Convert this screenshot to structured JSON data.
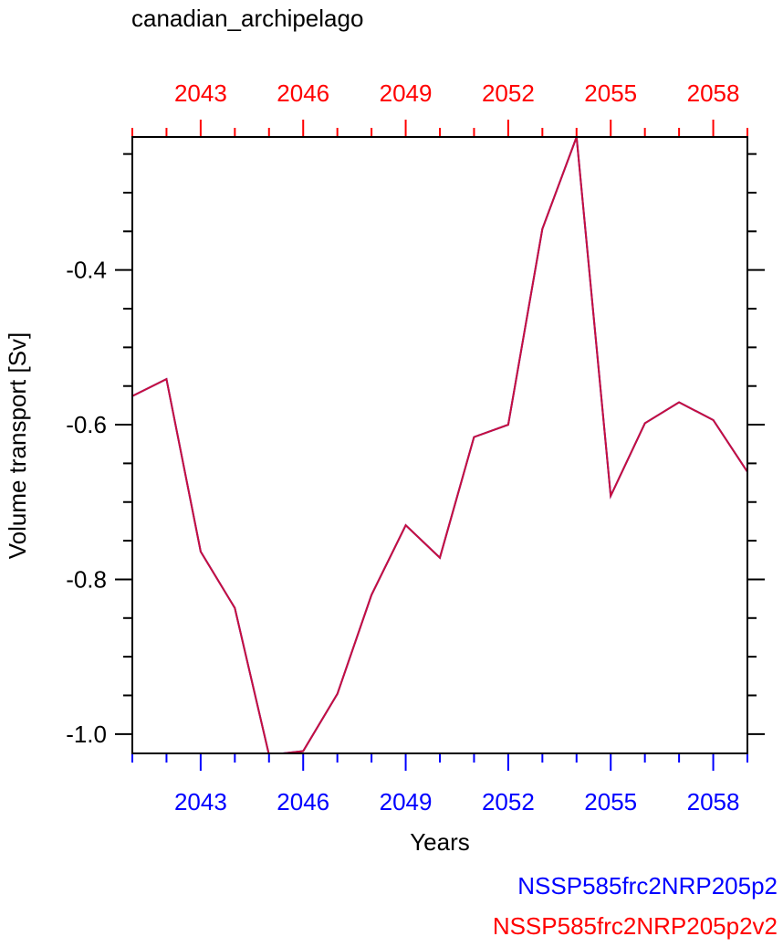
{
  "chart_data": {
    "type": "line",
    "title": "canadian_archipelago",
    "xlabel": "Years",
    "ylabel": "Volume transport [Sv]",
    "xlim": [
      2041,
      2059
    ],
    "ylim": [
      -1.025,
      -0.228
    ],
    "x_ticks": [
      2043,
      2046,
      2049,
      2052,
      2055,
      2058
    ],
    "y_ticks": [
      -1.0,
      -0.8,
      -0.6,
      -0.4
    ],
    "y_tick_labels": [
      "-1.0",
      "-0.8",
      "-0.6",
      "-0.4"
    ],
    "grid": false,
    "bottom_axis_color": "#0000ff",
    "top_axis_color": "#ff0000",
    "series": [
      {
        "name": "NSSP585frc2NRP205p2",
        "color": "#0000ff",
        "x": [
          2041,
          2042,
          2043,
          2044,
          2045,
          2046,
          2047,
          2048,
          2049,
          2050,
          2051,
          2052,
          2053,
          2054,
          2055,
          2056,
          2057,
          2058,
          2059
        ],
        "values": [
          -0.563,
          -0.541,
          -0.764,
          -0.837,
          -1.027,
          -1.022,
          -0.948,
          -0.82,
          -0.73,
          -0.772,
          -0.616,
          -0.6,
          -0.347,
          -0.228,
          -0.692,
          -0.598,
          -0.571,
          -0.594,
          -0.661
        ]
      },
      {
        "name": "NSSP585frc2NRP205p2v2",
        "color": "#ff0000",
        "x": [
          2041,
          2042,
          2043,
          2044,
          2045,
          2046,
          2047,
          2048,
          2049,
          2050,
          2051,
          2052,
          2053,
          2054,
          2055,
          2056,
          2057,
          2058,
          2059
        ],
        "values": [
          -0.563,
          -0.541,
          -0.764,
          -0.837,
          -1.027,
          -1.022,
          -0.948,
          -0.82,
          -0.73,
          -0.772,
          -0.616,
          -0.6,
          -0.347,
          -0.228,
          -0.692,
          -0.598,
          -0.571,
          -0.594,
          -0.661
        ]
      }
    ]
  }
}
